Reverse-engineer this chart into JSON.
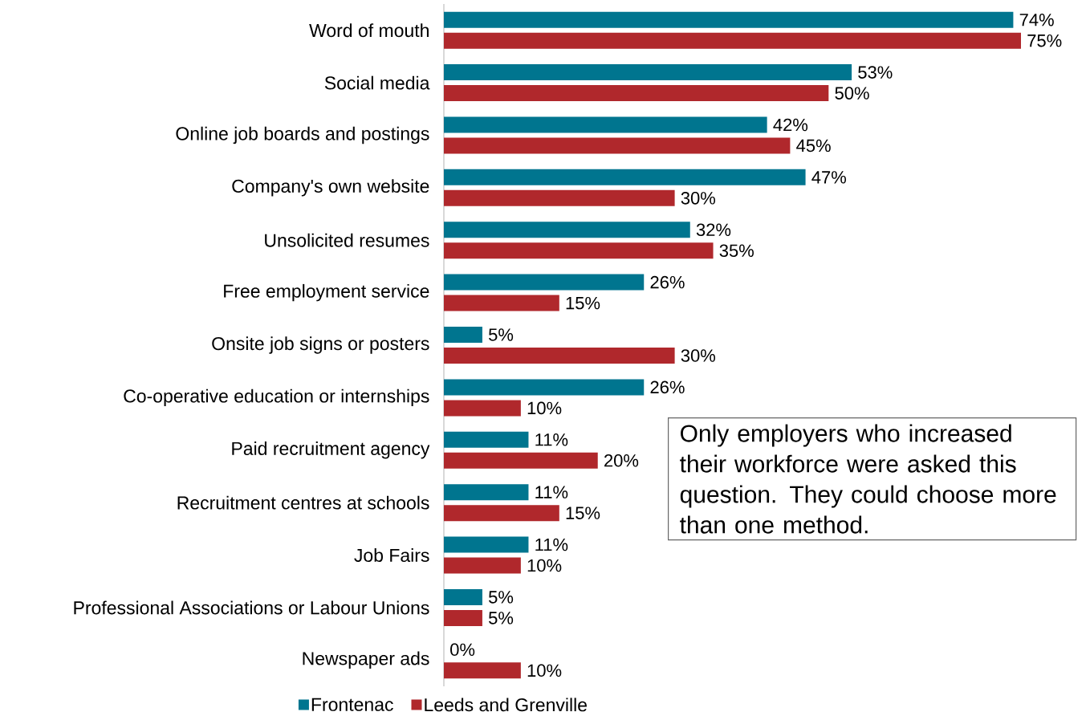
{
  "chart_data": {
    "type": "bar",
    "orientation": "horizontal",
    "categories": [
      "Word of mouth",
      "Social media",
      "Online job boards and postings",
      "Company's own website",
      "Unsolicited resumes",
      "Free employment service",
      "Onsite job signs or posters",
      "Co-operative education or internships",
      "Paid recruitment agency",
      "Recruitment centres at schools",
      "Job Fairs",
      "Professional Associations or Labour Unions",
      "Newspaper ads"
    ],
    "series": [
      {
        "name": "Frontenac",
        "color": "#00758f",
        "values": [
          74,
          53,
          42,
          47,
          32,
          26,
          5,
          26,
          11,
          11,
          11,
          5,
          0
        ],
        "value_labels": [
          "74%",
          "53%",
          "42%",
          "47%",
          "32%",
          "26%",
          "5%",
          "26%",
          "11%",
          "11%",
          "11%",
          "5%",
          "0%"
        ]
      },
      {
        "name": "Leeds and Grenville",
        "color": "#b0282c",
        "values": [
          75,
          50,
          45,
          30,
          35,
          15,
          30,
          10,
          20,
          15,
          10,
          5,
          10
        ],
        "value_labels": [
          "75%",
          "50%",
          "45%",
          "30%",
          "35%",
          "15%",
          "30%",
          "10%",
          "20%",
          "15%",
          "10%",
          "5%",
          "10%"
        ]
      }
    ],
    "tick_labels": "y",
    "legend": "bottom",
    "grid": false,
    "annotations": [
      "Only employers who increased their workforce were asked this question. They could choose more than one method."
    ]
  }
}
